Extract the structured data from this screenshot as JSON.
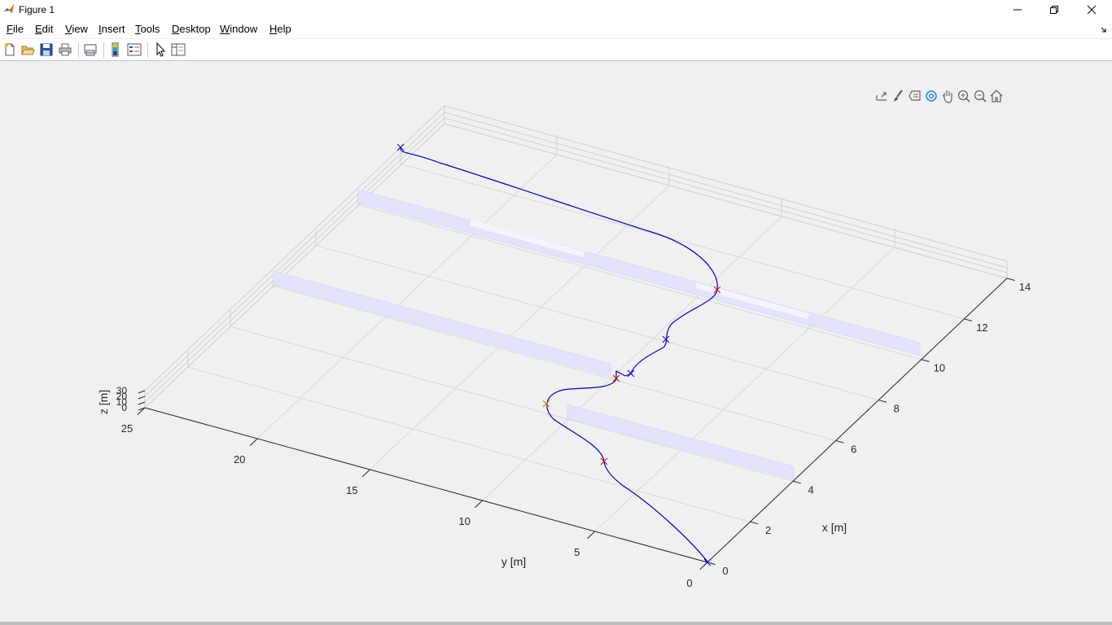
{
  "window": {
    "title": "Figure 1",
    "minimize_icon": "minimize-icon",
    "maximize_icon": "restore-icon",
    "close_icon": "close-icon"
  },
  "menu": {
    "items": [
      "File",
      "Edit",
      "View",
      "Insert",
      "Tools",
      "Desktop",
      "Window",
      "Help"
    ]
  },
  "toolbar": {
    "icons": [
      "new-figure-icon",
      "open-file-icon",
      "save-icon",
      "print-icon",
      "link-plot-icon",
      "colorbar-icon",
      "legend-icon",
      "pointer-icon",
      "property-inspector-icon"
    ]
  },
  "axes_toolbar": {
    "icons": [
      "export-icon",
      "brush-icon",
      "data-tips-icon",
      "rotate-3d-icon",
      "pan-icon",
      "zoom-in-icon",
      "zoom-out-icon",
      "home-icon"
    ]
  },
  "chart_data": {
    "type": "line",
    "xlabel": "x [m]",
    "ylabel": "y [m]",
    "zlabel": "z [m]",
    "x_ticks": [
      "0",
      "2",
      "4",
      "6",
      "8",
      "10",
      "12",
      "14"
    ],
    "y_ticks": [
      "0",
      "5",
      "10",
      "15",
      "20",
      "25"
    ],
    "z_ticks": [
      "0",
      "10",
      "20",
      "30"
    ],
    "xlim": [
      0,
      14
    ],
    "ylim": [
      0,
      25
    ],
    "zlim": [
      0,
      30
    ],
    "grid": true,
    "colors": {
      "trajectory": "#0000cc",
      "obstacle": "#ddddfa",
      "grid": "#d8d8d8",
      "axis": "#262626",
      "marker_red": "#cc0000",
      "marker_blue": "#0000cc"
    }
  }
}
